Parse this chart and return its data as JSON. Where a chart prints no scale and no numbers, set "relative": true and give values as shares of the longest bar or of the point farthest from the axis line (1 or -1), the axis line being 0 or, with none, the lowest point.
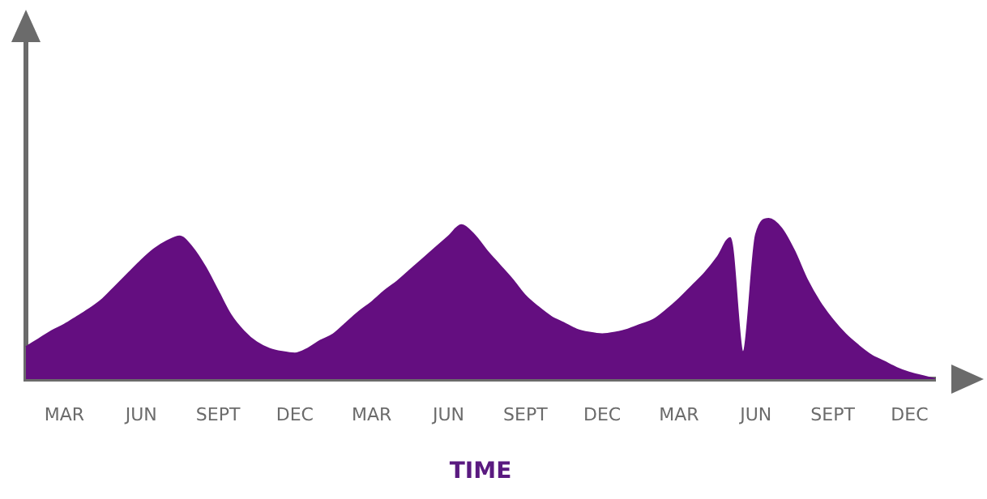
{
  "chart_data": {
    "type": "area",
    "relative": true,
    "xlabel": "TIME",
    "categories": [
      null,
      null,
      null,
      "MAR",
      null,
      null,
      null,
      null,
      null,
      "JUN",
      null,
      null,
      null,
      null,
      null,
      "SEPT",
      null,
      null,
      null,
      null,
      null,
      "DEC",
      null,
      null,
      null,
      null,
      null,
      "MAR",
      null,
      null,
      null,
      null,
      null,
      "JUN",
      null,
      null,
      null,
      null,
      null,
      "SEPT",
      null,
      null,
      null,
      null,
      null,
      "DEC",
      null,
      null,
      null,
      null,
      null,
      "MAR",
      null,
      null,
      null,
      null,
      null,
      "JUN",
      null,
      null,
      null,
      null,
      null,
      "SEPT",
      null,
      null,
      null,
      null,
      null,
      "DEC",
      null,
      null
    ],
    "series": [
      {
        "color": "#640e80",
        "values": [
          0.2,
          0.25,
          0.3,
          0.34,
          0.39,
          0.44,
          0.5,
          0.58,
          0.66,
          0.74,
          0.81,
          0.86,
          0.89,
          0.82,
          0.7,
          0.55,
          0.4,
          0.3,
          0.23,
          0.19,
          0.17,
          0.16,
          0.19,
          0.24,
          0.28,
          0.35,
          0.42,
          0.48,
          0.55,
          0.61,
          0.68,
          0.75,
          0.82,
          0.89,
          0.96,
          0.9,
          0.8,
          0.71,
          0.62,
          0.52,
          0.45,
          0.39,
          0.35,
          0.31,
          0.29,
          0.28,
          0.29,
          0.31,
          0.34,
          0.37,
          0.43,
          0.5,
          0.58,
          0.66,
          0.76,
          0.88,
          0.17,
          0.9,
          1.0,
          0.94,
          0.8,
          0.62,
          0.48,
          0.37,
          0.28,
          0.21,
          0.15,
          0.11,
          0.07,
          0.04,
          0.02,
          0
        ]
      }
    ],
    "tick_labels": "x",
    "grid": false,
    "legend": false
  }
}
